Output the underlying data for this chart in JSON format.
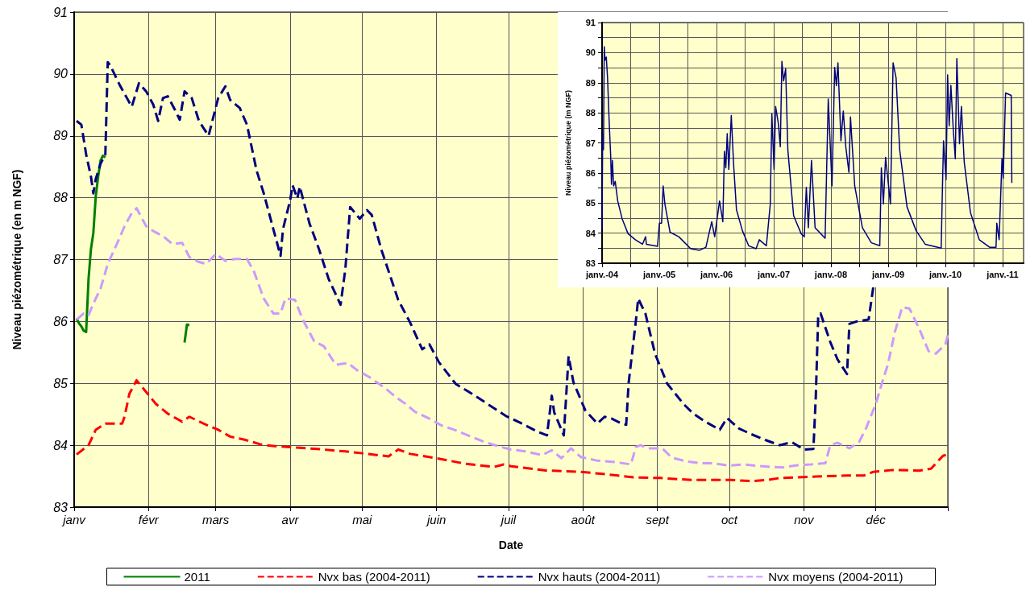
{
  "chart_data": [
    {
      "type": "line",
      "xlabel": "Date",
      "ylabel": "Niveau piézométrique (en m NGF)",
      "xlim": [
        "--01-01",
        "--12-31"
      ],
      "xticks": [
        {
          "value": "--01-01",
          "label": "janv"
        },
        {
          "value": "--02-01",
          "label": "févr"
        },
        {
          "value": "--03-01",
          "label": "mars"
        },
        {
          "value": "--04-01",
          "label": "avr"
        },
        {
          "value": "--05-01",
          "label": "mai"
        },
        {
          "value": "--06-01",
          "label": "juin"
        },
        {
          "value": "--07-01",
          "label": "juil"
        },
        {
          "value": "--08-01",
          "label": "août"
        },
        {
          "value": "--09-01",
          "label": "sept"
        },
        {
          "value": "--10-01",
          "label": "oct"
        },
        {
          "value": "--11-01",
          "label": "nov"
        },
        {
          "value": "--12-01",
          "label": "déc"
        },
        {
          "value": "--12-31",
          "label": null
        }
      ],
      "ylim": [
        83,
        91
      ],
      "yticks": [
        83,
        84,
        85,
        86,
        87,
        88,
        89,
        90,
        91
      ],
      "grid": true,
      "legend": "bottom",
      "marker": "none",
      "series": [
        {
          "name": "2011",
          "color": "#008000",
          "line_style": "solid",
          "x": [
            "--01-02",
            "--01-03",
            "--01-04",
            "--01-05",
            "--01-06",
            "--01-07",
            "--01-08",
            "--01-09",
            "--01-10",
            "--01-11",
            "--01-12",
            "--01-13",
            "--01-14",
            "--01-31",
            "--02-16",
            "--02-17",
            "--02-18"
          ],
          "values": [
            86.05,
            85.97,
            85.92,
            85.85,
            85.83,
            86.69,
            87.17,
            87.43,
            88.02,
            88.34,
            88.6,
            88.68,
            88.65,
            null,
            85.66,
            85.95,
            85.94
          ]
        },
        {
          "name": "Nvx bas (2004-2011)",
          "color": "#ff0000",
          "line_style": "dashed",
          "x": [
            "--01-02",
            "--01-03",
            "--01-07",
            "--01-10",
            "--01-14",
            "--01-16",
            "--01-21",
            "--01-22",
            "--01-24",
            "--01-27",
            "--01-31",
            "--02-04",
            "--02-09",
            "--02-15",
            "--02-18",
            "--02-25",
            "--03-02",
            "--03-07",
            "--03-13",
            "--03-20",
            "--03-27",
            "--04-01",
            "--04-12",
            "--04-24",
            "--05-01",
            "--05-12",
            "--05-16",
            "--05-21",
            "--06-01",
            "--06-13",
            "--06-25",
            "--06-29",
            "--07-02",
            "--07-17",
            "--07-31",
            "--08-11",
            "--08-22",
            "--09-02",
            "--09-15",
            "--10-01",
            "--10-10",
            "--10-17",
            "--10-22",
            "--11-03",
            "--11-19",
            "--11-26",
            "--11-30",
            "--12-08",
            "--12-19",
            "--12-24",
            "--12-29",
            "--12-31"
          ],
          "values": [
            83.85,
            83.88,
            84.0,
            84.25,
            84.35,
            84.35,
            84.35,
            84.46,
            84.83,
            85.05,
            84.86,
            84.67,
            84.51,
            84.38,
            84.46,
            84.33,
            84.25,
            84.14,
            84.09,
            84.01,
            83.98,
            83.97,
            83.94,
            83.9,
            83.87,
            83.82,
            83.93,
            83.86,
            83.79,
            83.7,
            83.65,
            83.69,
            83.66,
            83.59,
            83.57,
            83.53,
            83.48,
            83.47,
            83.44,
            83.44,
            83.42,
            83.44,
            83.47,
            83.49,
            83.51,
            83.51,
            83.57,
            83.6,
            83.59,
            83.62,
            83.83,
            83.85
          ]
        },
        {
          "name": "Nvx hauts (2004-2011)",
          "color": "#000080",
          "line_style": "dashed",
          "x": [
            "--01-02",
            "--01-04",
            "--01-06",
            "--01-08",
            "--01-09",
            "--01-10",
            "--01-12",
            "--01-14",
            "--01-15",
            "--01-16",
            "--01-20",
            "--01-23",
            "--01-25",
            "--01-28",
            "--01-31",
            "--02-03",
            "--02-05",
            "--02-07",
            "--02-09",
            "--02-12",
            "--02-14",
            "--02-16",
            "--02-19",
            "--02-22",
            "--02-26",
            "--03-02",
            "--03-05",
            "--03-07",
            "--03-11",
            "--03-14",
            "--03-18",
            "--03-21",
            "--03-25",
            "--03-28",
            "--03-29",
            "--04-01",
            "--04-02",
            "--04-04",
            "--04-05",
            "--04-09",
            "--04-13",
            "--04-17",
            "--04-22",
            "--04-24",
            "--04-26",
            "--04-30",
            "--05-03",
            "--05-05",
            "--05-09",
            "--05-16",
            "--05-21",
            "--05-26",
            "--05-29",
            "--06-02",
            "--06-09",
            "--06-17",
            "--06-30",
            "--07-06",
            "--07-13",
            "--07-17",
            "--07-19",
            "--07-20",
            "--07-24",
            "--07-26",
            "--07-28",
            "--08-02",
            "--08-07",
            "--08-10",
            "--08-13",
            "--08-17",
            "--08-19",
            "--08-20",
            "--08-23",
            "--08-24",
            "--08-27",
            "--08-31",
            "--09-05",
            "--09-12",
            "--09-16",
            "--09-21",
            "--09-27",
            "--09-30",
            "--10-05",
            "--10-10",
            "--10-17",
            "--10-22",
            "--10-27",
            "--11-01",
            "--11-05",
            "--11-06",
            "--11-07",
            "--11-08",
            "--11-12",
            "--11-15",
            "--11-19",
            "--11-20",
            "--11-23",
            "--11-28",
            "--11-30"
          ],
          "values": [
            89.24,
            89.18,
            88.7,
            88.34,
            88.07,
            88.3,
            88.55,
            88.7,
            90.19,
            90.14,
            89.82,
            89.61,
            89.47,
            89.85,
            89.72,
            89.5,
            89.24,
            89.61,
            89.64,
            89.42,
            89.26,
            89.72,
            89.61,
            89.24,
            89.0,
            89.61,
            89.8,
            89.58,
            89.45,
            89.18,
            88.44,
            88.07,
            87.49,
            87.06,
            87.49,
            87.96,
            88.2,
            87.99,
            88.18,
            87.59,
            87.17,
            86.69,
            86.27,
            86.85,
            87.85,
            87.66,
            87.8,
            87.72,
            87.16,
            86.35,
            85.98,
            85.55,
            85.63,
            85.34,
            84.99,
            84.8,
            84.47,
            84.36,
            84.22,
            84.16,
            84.8,
            84.53,
            84.16,
            85.44,
            85.02,
            84.56,
            84.35,
            84.46,
            84.43,
            84.35,
            84.33,
            85.0,
            86.0,
            86.37,
            86.13,
            85.48,
            85.0,
            84.66,
            84.51,
            84.38,
            84.25,
            84.44,
            84.27,
            84.18,
            84.07,
            84.0,
            84.05,
            83.93,
            83.94,
            84.79,
            86.09,
            86.13,
            85.67,
            85.39,
            85.15,
            85.96,
            86.0,
            86.03,
            86.57
          ]
        },
        {
          "name": "Nvx moyens (2004-2011)",
          "color": "#cc99ff",
          "line_style": "dashed",
          "x": [
            "--01-02",
            "--01-05",
            "--01-07",
            "--01-09",
            "--01-12",
            "--01-15",
            "--01-19",
            "--01-22",
            "--01-25",
            "--01-27",
            "--01-31",
            "--02-03",
            "--02-07",
            "--02-11",
            "--02-15",
            "--02-18",
            "--02-22",
            "--02-25",
            "--03-01",
            "--03-05",
            "--03-09",
            "--03-14",
            "--03-17",
            "--03-21",
            "--03-25",
            "--03-28",
            "--03-30",
            "--04-03",
            "--04-06",
            "--04-11",
            "--04-15",
            "--04-20",
            "--04-25",
            "--04-29",
            "--05-04",
            "--05-10",
            "--05-15",
            "--05-19",
            "--05-23",
            "--05-29",
            "--06-03",
            "--06-09",
            "--06-14",
            "--06-21",
            "--06-28",
            "--07-02",
            "--07-08",
            "--07-15",
            "--07-19",
            "--07-23",
            "--07-27",
            "--07-31",
            "--08-07",
            "--08-14",
            "--08-21",
            "--08-23",
            "--08-25",
            "--08-28",
            "--09-03",
            "--09-07",
            "--09-13",
            "--09-19",
            "--09-24",
            "--10-01",
            "--10-07",
            "--10-12",
            "--10-18",
            "--10-23",
            "--10-30",
            "--11-04",
            "--11-10",
            "--11-12",
            "--11-15",
            "--11-20",
            "--11-24",
            "--11-27",
            "--12-01",
            "--12-04",
            "--12-06",
            "--12-09",
            "--12-12",
            "--12-15",
            "--12-19",
            "--12-23",
            "--12-26",
            "--12-30",
            "--12-31"
          ],
          "values": [
            86.03,
            86.13,
            86.1,
            86.29,
            86.53,
            86.93,
            87.27,
            87.54,
            87.75,
            87.83,
            87.54,
            87.46,
            87.38,
            87.25,
            87.27,
            87.04,
            86.96,
            86.93,
            87.09,
            86.98,
            87.01,
            87.01,
            86.8,
            86.37,
            86.13,
            86.13,
            86.37,
            86.35,
            86.05,
            85.68,
            85.6,
            85.3,
            85.33,
            85.21,
            85.1,
            84.94,
            84.78,
            84.67,
            84.54,
            84.43,
            84.32,
            84.24,
            84.16,
            84.05,
            83.97,
            83.93,
            83.9,
            83.84,
            83.92,
            83.79,
            83.95,
            83.81,
            83.75,
            83.73,
            83.69,
            83.97,
            84.0,
            83.95,
            83.95,
            83.8,
            83.74,
            83.71,
            83.71,
            83.67,
            83.69,
            83.67,
            83.65,
            83.64,
            83.68,
            83.69,
            83.71,
            84.0,
            84.04,
            83.95,
            84.05,
            84.28,
            84.67,
            85.06,
            85.3,
            85.84,
            86.23,
            86.21,
            85.89,
            85.52,
            85.48,
            85.63,
            85.78
          ]
        }
      ]
    },
    {
      "type": "line",
      "ylabel": "Niveau piézométrique (m NGF)",
      "xlim": [
        "2004-01-01",
        "2011-05-15"
      ],
      "xticks": [
        {
          "value": "2004-01-01",
          "label": "janv.-04"
        },
        {
          "value": "2004-07-01",
          "label": null
        },
        {
          "value": "2005-01-01",
          "label": "janv.-05"
        },
        {
          "value": "2005-07-01",
          "label": null
        },
        {
          "value": "2006-01-01",
          "label": "janv.-06"
        },
        {
          "value": "2006-07-01",
          "label": null
        },
        {
          "value": "2007-01-01",
          "label": "janv.-07"
        },
        {
          "value": "2007-07-01",
          "label": null
        },
        {
          "value": "2008-01-01",
          "label": "janv.-08"
        },
        {
          "value": "2008-07-01",
          "label": null
        },
        {
          "value": "2009-01-01",
          "label": "janv.-09"
        },
        {
          "value": "2009-07-01",
          "label": null
        },
        {
          "value": "2010-01-01",
          "label": "janv.-10"
        },
        {
          "value": "2010-07-01",
          "label": null
        },
        {
          "value": "2011-01-01",
          "label": "janv.-11"
        }
      ],
      "ylim": [
        83,
        91
      ],
      "yticks": [
        83,
        {
          "value": 83.5,
          "label": null
        },
        84,
        {
          "value": 84.5,
          "label": null
        },
        85,
        {
          "value": 85.5,
          "label": null
        },
        86,
        {
          "value": 86.5,
          "label": null
        },
        87,
        {
          "value": 87.5,
          "label": null
        },
        88,
        {
          "value": 88.5,
          "label": null
        },
        89,
        {
          "value": 89.5,
          "label": null
        },
        90,
        {
          "value": 90.5,
          "label": null
        },
        91
      ],
      "grid": true,
      "marker": "none",
      "series": [
        {
          "color": "#000080",
          "line_style": "solid",
          "x": [
            "2004-01-01",
            "2004-01-05",
            "2004-01-10",
            "2004-01-15",
            "2004-01-20",
            "2004-01-28",
            "2004-02-05",
            "2004-02-15",
            "2004-02-25",
            "2004-03-01",
            "2004-03-07",
            "2004-03-15",
            "2004-03-25",
            "2004-04-10",
            "2004-05-08",
            "2004-06-15",
            "2004-08-01",
            "2004-09-15",
            "2004-10-05",
            "2004-10-10",
            "2004-12-20",
            "2005-01-01",
            "2005-01-15",
            "2005-01-25",
            "2005-02-05",
            "2005-03-10",
            "2005-05-05",
            "2005-07-20",
            "2005-09-15",
            "2005-10-25",
            "2005-12-01",
            "2005-12-20",
            "2006-01-20",
            "2006-02-10",
            "2006-02-20",
            "2006-03-01",
            "2006-03-10",
            "2006-03-20",
            "2006-04-05",
            "2006-04-20",
            "2006-05-08",
            "2006-06-15",
            "2006-07-25",
            "2006-09-10",
            "2006-10-01",
            "2006-11-15",
            "2006-12-10",
            "2006-12-20",
            "2007-01-03",
            "2007-01-13",
            "2007-01-30",
            "2007-02-12",
            "2007-02-22",
            "2007-03-05",
            "2007-03-18",
            "2007-04-01",
            "2007-05-08",
            "2007-06-25",
            "2007-07-15",
            "2007-07-28",
            "2007-08-10",
            "2007-08-30",
            "2007-09-22",
            "2007-11-25",
            "2007-12-15",
            "2008-01-08",
            "2008-01-25",
            "2008-02-05",
            "2008-02-15",
            "2008-03-05",
            "2008-03-20",
            "2008-04-05",
            "2008-04-25",
            "2008-05-05",
            "2008-06-01",
            "2008-07-20",
            "2008-09-15",
            "2008-11-08",
            "2008-11-18",
            "2008-12-01",
            "2008-12-15",
            "2009-01-01",
            "2009-01-15",
            "2009-02-01",
            "2009-02-20",
            "2009-03-15",
            "2009-05-01",
            "2009-06-28",
            "2009-08-25",
            "2009-12-05",
            "2009-12-12",
            "2009-12-20",
            "2010-01-05",
            "2010-01-15",
            "2010-01-25",
            "2010-02-05",
            "2010-02-20",
            "2010-03-05",
            "2010-03-15",
            "2010-04-01",
            "2010-04-13",
            "2010-05-01",
            "2010-06-10",
            "2010-08-05",
            "2010-10-10",
            "2010-11-20",
            "2010-11-25",
            "2010-12-10",
            "2010-12-28",
            "2011-01-05",
            "2011-01-20",
            "2011-02-25",
            "2011-03-01"
          ],
          "values": [
            84.13,
            87.27,
            86.77,
            90.2,
            89.75,
            89.85,
            89.16,
            87.76,
            86.57,
            85.62,
            86.42,
            85.57,
            85.72,
            85.07,
            84.48,
            83.98,
            83.78,
            83.63,
            83.88,
            83.63,
            83.56,
            84.33,
            84.33,
            85.57,
            84.97,
            84.03,
            83.88,
            83.48,
            83.43,
            83.53,
            84.38,
            83.88,
            85.07,
            84.38,
            86.72,
            86.17,
            87.31,
            86.12,
            87.91,
            86.27,
            84.78,
            84.08,
            83.58,
            83.48,
            83.78,
            83.58,
            84.97,
            87.96,
            86.12,
            88.21,
            87.66,
            86.87,
            89.71,
            89.06,
            89.46,
            86.77,
            84.58,
            83.98,
            83.88,
            85.52,
            84.18,
            86.42,
            84.18,
            83.83,
            88.46,
            85.57,
            89.51,
            88.9,
            89.66,
            87.07,
            88.06,
            86.87,
            86.02,
            87.86,
            85.57,
            84.18,
            83.68,
            83.58,
            86.17,
            84.97,
            86.52,
            85.67,
            84.97,
            89.66,
            89.16,
            86.77,
            84.87,
            84.08,
            83.63,
            83.5,
            85.27,
            87.07,
            85.77,
            89.26,
            87.56,
            88.91,
            87.46,
            86.47,
            89.8,
            86.97,
            88.21,
            86.37,
            84.68,
            83.78,
            83.53,
            83.53,
            84.33,
            83.78,
            86.47,
            85.82,
            88.66,
            88.58,
            85.67
          ]
        }
      ]
    }
  ]
}
